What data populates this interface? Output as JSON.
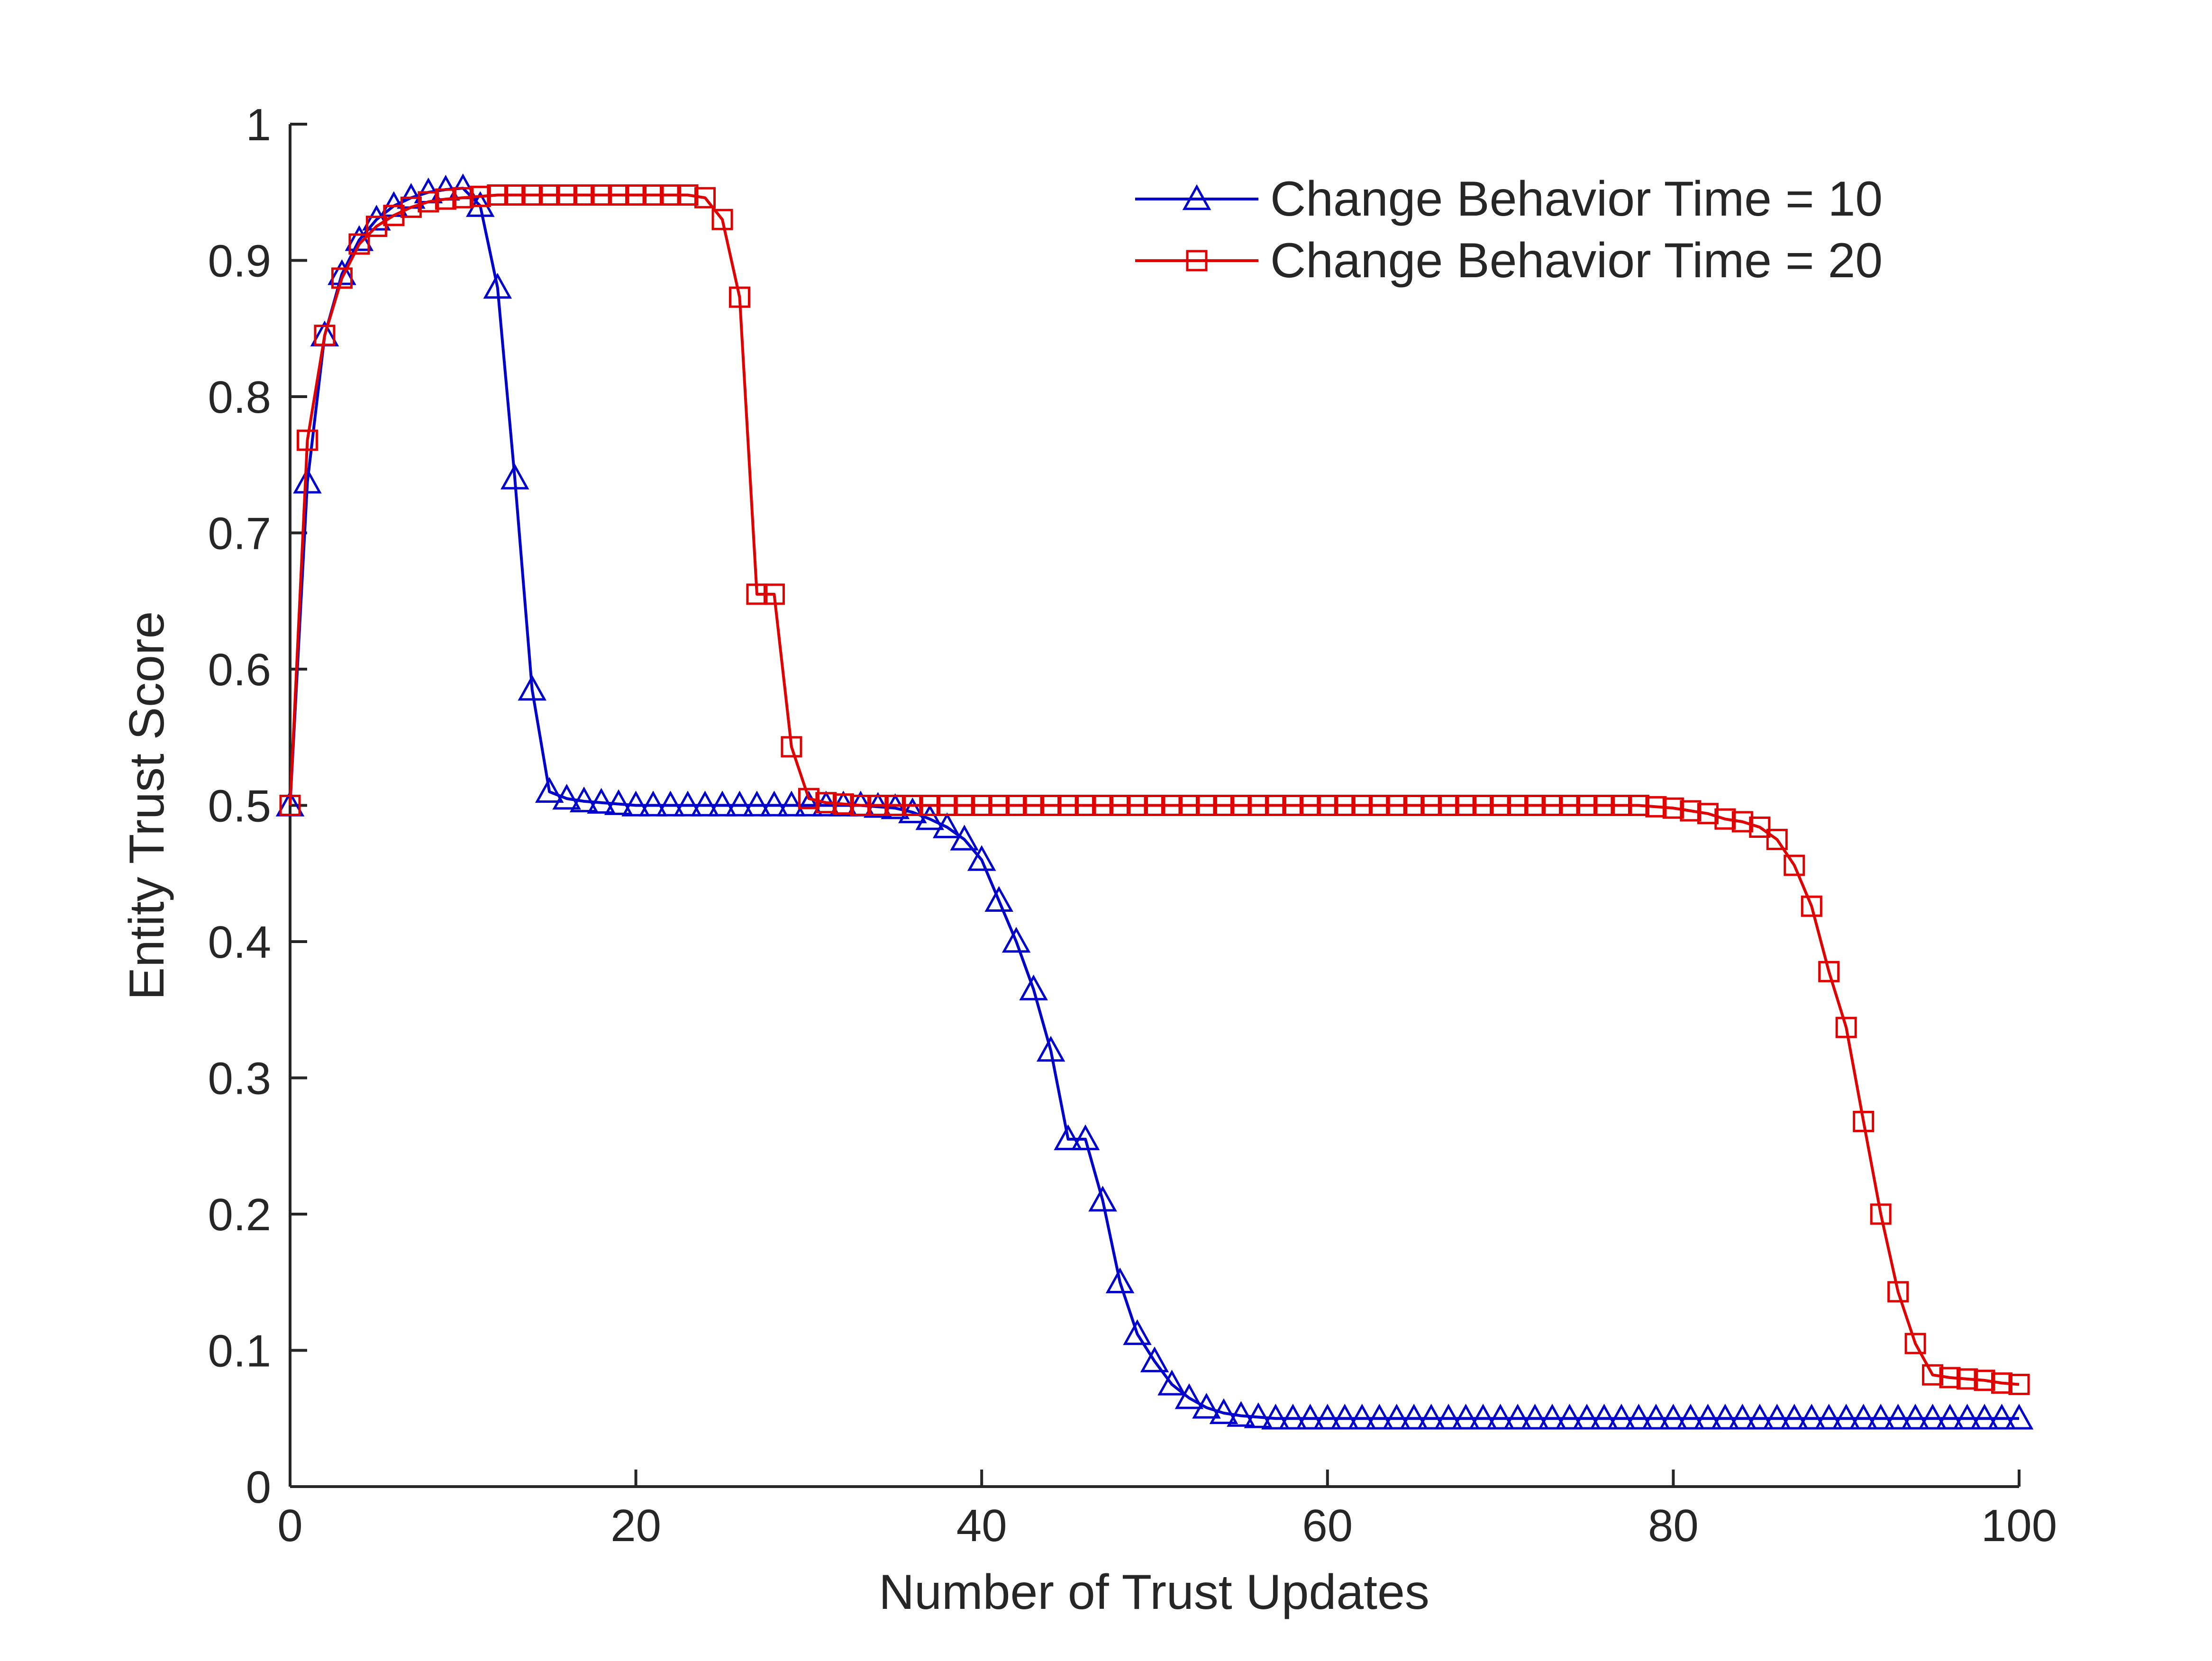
{
  "chart_data": {
    "type": "line",
    "title": "",
    "xlabel": "Number of Trust Updates",
    "ylabel": "Entity Trust Score",
    "xlim": [
      0,
      100
    ],
    "ylim": [
      0,
      1
    ],
    "xticks": [
      0,
      20,
      40,
      60,
      80,
      100
    ],
    "yticks": [
      0,
      0.1,
      0.2,
      0.3,
      0.4,
      0.5,
      0.6,
      0.7,
      0.8,
      0.9,
      1
    ],
    "xtick_labels": [
      "0",
      "20",
      "40",
      "60",
      "80",
      "100"
    ],
    "ytick_labels": [
      "0",
      "0.1",
      "0.2",
      "0.3",
      "0.4",
      "0.5",
      "0.6",
      "0.7",
      "0.8",
      "0.9",
      "1"
    ],
    "grid": false,
    "legend_position": "top-right",
    "x": [
      0,
      1,
      2,
      3,
      4,
      5,
      6,
      7,
      8,
      9,
      10,
      11,
      12,
      13,
      14,
      15,
      16,
      17,
      18,
      19,
      20,
      21,
      22,
      23,
      24,
      25,
      26,
      27,
      28,
      29,
      30,
      31,
      32,
      33,
      34,
      35,
      36,
      37,
      38,
      39,
      40,
      41,
      42,
      43,
      44,
      45,
      46,
      47,
      48,
      49,
      50,
      51,
      52,
      53,
      54,
      55,
      56,
      57,
      58,
      59,
      60,
      61,
      62,
      63,
      64,
      65,
      66,
      67,
      68,
      69,
      70,
      71,
      72,
      73,
      74,
      75,
      76,
      77,
      78,
      79,
      80,
      81,
      82,
      83,
      84,
      85,
      86,
      87,
      88,
      89,
      90,
      91,
      92,
      93,
      94,
      95,
      96,
      97,
      98,
      99,
      100
    ],
    "series": [
      {
        "name": "Change Behavior Time = 10",
        "color": "#0000cc",
        "marker": "triangle",
        "values": [
          0.5,
          0.737,
          0.845,
          0.89,
          0.915,
          0.93,
          0.94,
          0.946,
          0.95,
          0.952,
          0.953,
          0.94,
          0.88,
          0.74,
          0.585,
          0.51,
          0.505,
          0.503,
          0.502,
          0.501,
          0.5,
          0.5,
          0.5,
          0.5,
          0.5,
          0.5,
          0.5,
          0.5,
          0.5,
          0.5,
          0.5,
          0.5,
          0.5,
          0.5,
          0.499,
          0.498,
          0.495,
          0.49,
          0.484,
          0.475,
          0.46,
          0.43,
          0.4,
          0.365,
          0.32,
          0.255,
          0.255,
          0.21,
          0.15,
          0.112,
          0.092,
          0.075,
          0.065,
          0.058,
          0.054,
          0.052,
          0.051,
          0.05,
          0.05,
          0.05,
          0.05,
          0.05,
          0.05,
          0.05,
          0.05,
          0.05,
          0.05,
          0.05,
          0.05,
          0.05,
          0.05,
          0.05,
          0.05,
          0.05,
          0.05,
          0.05,
          0.05,
          0.05,
          0.05,
          0.05,
          0.05,
          0.05,
          0.05,
          0.05,
          0.05,
          0.05,
          0.05,
          0.05,
          0.05,
          0.05,
          0.05,
          0.05,
          0.05,
          0.05,
          0.05,
          0.05,
          0.05,
          0.05,
          0.05,
          0.05,
          0.05
        ]
      },
      {
        "name": "Change Behavior Time = 20",
        "color": "#e00000",
        "marker": "square",
        "values": [
          0.5,
          0.768,
          0.845,
          0.887,
          0.912,
          0.925,
          0.933,
          0.939,
          0.943,
          0.945,
          0.946,
          0.947,
          0.948,
          0.948,
          0.948,
          0.948,
          0.948,
          0.948,
          0.948,
          0.948,
          0.948,
          0.948,
          0.948,
          0.948,
          0.946,
          0.93,
          0.873,
          0.655,
          0.655,
          0.543,
          0.505,
          0.502,
          0.501,
          0.5,
          0.5,
          0.5,
          0.5,
          0.5,
          0.5,
          0.5,
          0.5,
          0.5,
          0.5,
          0.5,
          0.5,
          0.5,
          0.5,
          0.5,
          0.5,
          0.5,
          0.5,
          0.5,
          0.5,
          0.5,
          0.5,
          0.5,
          0.5,
          0.5,
          0.5,
          0.5,
          0.5,
          0.5,
          0.5,
          0.5,
          0.5,
          0.5,
          0.5,
          0.5,
          0.5,
          0.5,
          0.5,
          0.5,
          0.5,
          0.5,
          0.5,
          0.5,
          0.5,
          0.5,
          0.5,
          0.499,
          0.498,
          0.496,
          0.494,
          0.49,
          0.488,
          0.484,
          0.475,
          0.456,
          0.426,
          0.378,
          0.337,
          0.268,
          0.2,
          0.143,
          0.105,
          0.082,
          0.08,
          0.079,
          0.078,
          0.076,
          0.075
        ]
      }
    ]
  }
}
